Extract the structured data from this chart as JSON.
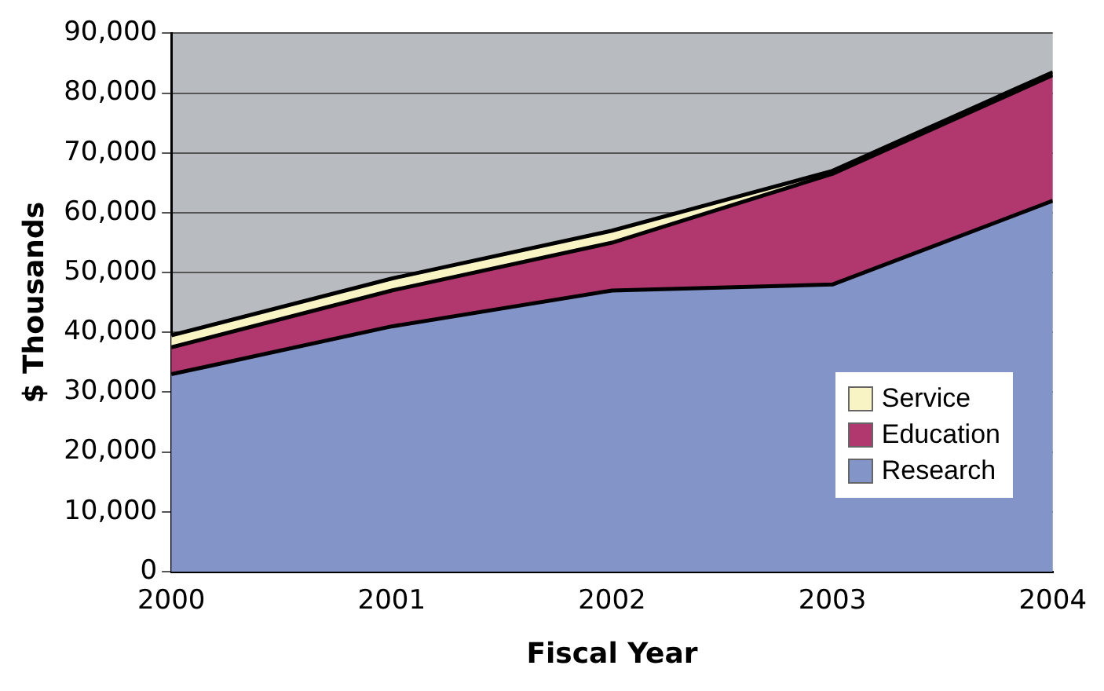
{
  "chart_data": {
    "type": "area",
    "xlabel": "Fiscal Year",
    "ylabel": "$ Thousands",
    "stacked": true,
    "x": [
      2000,
      2001,
      2002,
      2003,
      2004
    ],
    "series": [
      {
        "name": "Research",
        "color": "#8394c9",
        "values": [
          33000,
          41000,
          47000,
          48000,
          62000
        ]
      },
      {
        "name": "Education",
        "color": "#b0386e",
        "values": [
          4500,
          6000,
          8000,
          18500,
          21000
        ]
      },
      {
        "name": "Service",
        "color": "#f8f4c4",
        "values": [
          2000,
          2000,
          2000,
          500,
          500
        ]
      }
    ],
    "xlim": [
      2000,
      2004
    ],
    "xticks": [
      2000,
      2001,
      2002,
      2003,
      2004
    ],
    "ylim": [
      0,
      90000
    ],
    "yticks": [
      0,
      {
        "value": 10000,
        "label": "10,000"
      },
      {
        "value": 20000,
        "label": "20,000"
      },
      {
        "value": 30000,
        "label": "30,000"
      },
      {
        "value": 40000,
        "label": "40,000"
      },
      {
        "value": 50000,
        "label": "50,000"
      },
      {
        "value": 60000,
        "label": "60,000"
      },
      {
        "value": 70000,
        "label": "70,000"
      },
      {
        "value": 80000,
        "label": "80,000"
      },
      {
        "value": 90000,
        "label": "90,000"
      }
    ],
    "grid": "y",
    "legend": "bottom right"
  }
}
